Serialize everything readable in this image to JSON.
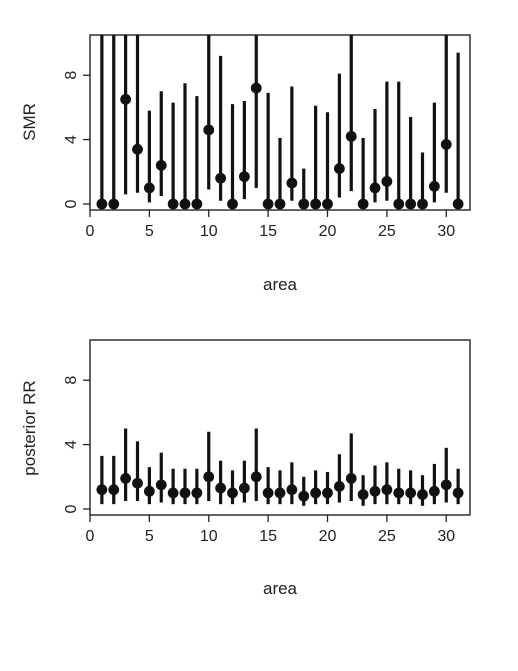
{
  "colors": {
    "ink": "#111111",
    "frame": "#222222",
    "background": "#ffffff"
  },
  "chart_data": [
    {
      "type": "scatter",
      "subtype": "point-with-interval",
      "xlabel": "area",
      "ylabel": "SMR",
      "xlim": [
        0,
        32
      ],
      "ylim": [
        0,
        10
      ],
      "xticks": [
        0,
        5,
        10,
        15,
        20,
        25,
        30
      ],
      "yticks": [
        0,
        4,
        8
      ],
      "grid": false,
      "legend": "none",
      "x": [
        1,
        2,
        3,
        4,
        5,
        6,
        7,
        8,
        9,
        10,
        11,
        12,
        13,
        14,
        15,
        16,
        17,
        18,
        19,
        20,
        21,
        22,
        23,
        24,
        25,
        26,
        27,
        28,
        29,
        30,
        31
      ],
      "values": [
        0,
        0,
        6.5,
        3.4,
        1.0,
        2.4,
        0,
        0,
        0,
        4.6,
        1.6,
        0,
        1.7,
        7.2,
        0,
        0,
        1.3,
        0,
        0,
        0,
        2.2,
        4.2,
        0,
        1.0,
        1.4,
        0,
        0,
        0,
        1.1,
        3.7,
        0
      ],
      "lower": [
        0,
        0,
        0.6,
        0.7,
        0.1,
        0.5,
        0,
        0,
        0,
        0.9,
        0.2,
        0,
        0.3,
        1.0,
        0,
        0,
        0.2,
        0,
        0,
        0,
        0.4,
        0.8,
        0,
        0.1,
        0.2,
        0,
        0,
        0,
        0.1,
        0.7,
        0
      ],
      "upper": [
        14,
        14,
        14,
        14,
        5.8,
        7.0,
        6.3,
        7.5,
        6.7,
        14,
        9.2,
        6.2,
        6.4,
        14,
        6.9,
        4.1,
        7.3,
        2.2,
        6.1,
        5.7,
        8.1,
        14,
        4.1,
        5.9,
        7.6,
        7.6,
        5.4,
        3.2,
        6.3,
        14,
        9.4
      ]
    },
    {
      "type": "scatter",
      "subtype": "point-with-interval",
      "xlabel": "area",
      "ylabel": "posterior RR",
      "xlim": [
        0,
        32
      ],
      "ylim": [
        0,
        10
      ],
      "xticks": [
        0,
        5,
        10,
        15,
        20,
        25,
        30
      ],
      "yticks": [
        0,
        4,
        8
      ],
      "grid": false,
      "legend": "none",
      "x": [
        1,
        2,
        3,
        4,
        5,
        6,
        7,
        8,
        9,
        10,
        11,
        12,
        13,
        14,
        15,
        16,
        17,
        18,
        19,
        20,
        21,
        22,
        23,
        24,
        25,
        26,
        27,
        28,
        29,
        30,
        31
      ],
      "values": [
        1.2,
        1.2,
        1.9,
        1.6,
        1.1,
        1.5,
        1.0,
        1.0,
        1.0,
        2.0,
        1.3,
        1.0,
        1.3,
        2.0,
        1.0,
        1.0,
        1.2,
        0.8,
        1.0,
        1.0,
        1.4,
        1.9,
        0.9,
        1.1,
        1.2,
        1.0,
        1.0,
        0.9,
        1.1,
        1.5,
        1.0
      ],
      "lower": [
        0.3,
        0.3,
        0.5,
        0.5,
        0.3,
        0.4,
        0.3,
        0.3,
        0.3,
        0.5,
        0.3,
        0.3,
        0.4,
        0.5,
        0.3,
        0.3,
        0.3,
        0.2,
        0.3,
        0.3,
        0.4,
        0.5,
        0.2,
        0.3,
        0.3,
        0.3,
        0.3,
        0.2,
        0.3,
        0.4,
        0.3
      ],
      "upper": [
        3.3,
        3.3,
        5.0,
        4.2,
        2.6,
        3.5,
        2.5,
        2.5,
        2.5,
        4.8,
        3.0,
        2.4,
        3.0,
        5.0,
        2.6,
        2.4,
        2.9,
        2.0,
        2.4,
        2.3,
        3.4,
        4.7,
        2.1,
        2.7,
        2.9,
        2.5,
        2.4,
        2.1,
        2.8,
        3.8,
        2.5
      ]
    }
  ]
}
